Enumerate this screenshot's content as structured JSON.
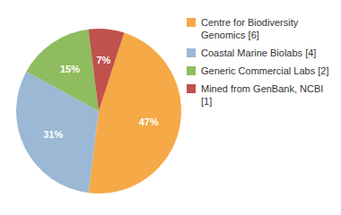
{
  "chart_data": {
    "type": "pie",
    "categories": [
      "Centre for Biodiversity\nGenomics [6]",
      "Coastal Marine Biolabs [4]",
      "Generic Commercial Labs [2]",
      "Mined from GenBank, NCBI [1]"
    ],
    "values": [
      47,
      31,
      15,
      7
    ],
    "value_labels": [
      "47%",
      "31%",
      "15%",
      "7%"
    ],
    "colors": [
      "#F5A947",
      "#9BB8D4",
      "#8FBC5E",
      "#C0514D"
    ],
    "legend": "right"
  }
}
